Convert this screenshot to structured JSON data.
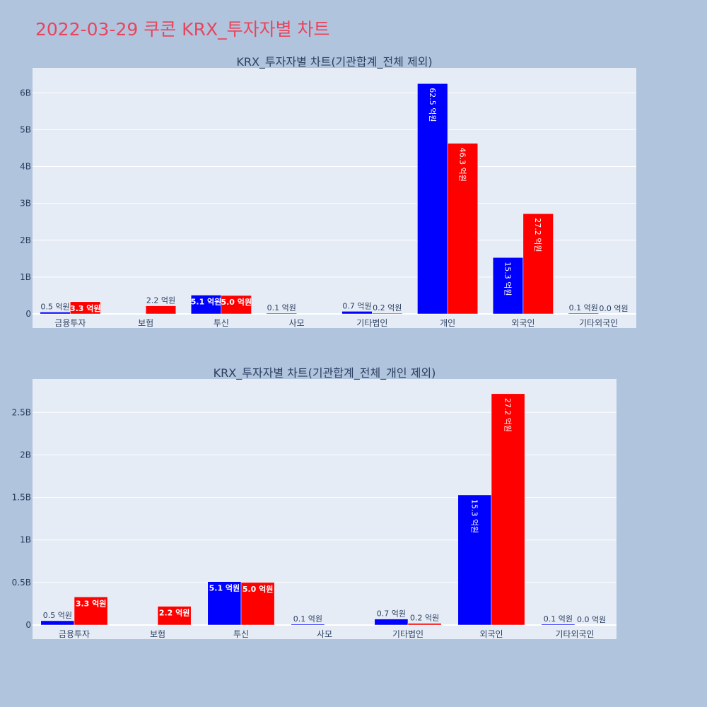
{
  "title": "2022-03-29 쿠콘 KRX_투자자별 차트",
  "colors": {
    "background": "#b0c4de",
    "plot_bg": "#e5ecf6",
    "title": "#e8455d",
    "series_buy": "#0000ff",
    "series_sell": "#ff0000",
    "text": "#2a3f5f"
  },
  "chart_data": [
    {
      "type": "bar",
      "title": "KRX_투자자별 차트(기관합계_전체 제외)",
      "categories": [
        "금융투자",
        "보험",
        "투신",
        "사모",
        "기타법인",
        "개인",
        "외국인",
        "기타외국인"
      ],
      "series": [
        {
          "color": "#0000ff",
          "values": [
            0.05,
            0,
            0.51,
            0.01,
            0.07,
            6.25,
            1.53,
            0.01
          ],
          "labels": [
            "0.5 억원",
            "",
            "5.1 억원",
            "0.1 억원",
            "0.7 억원",
            "62.5 억원",
            "15.3 억원",
            "0.1 억원"
          ]
        },
        {
          "color": "#ff0000",
          "values": [
            0.33,
            0.22,
            0.5,
            0,
            0.02,
            4.63,
            2.72,
            0.0
          ],
          "labels": [
            "3.3 억원",
            "2.2 억원",
            "5.0 억원",
            "",
            "0.2 억원",
            "46.3 억원",
            "27.2 억원",
            "0.0 억원"
          ]
        }
      ],
      "ylim": [
        0,
        6.6
      ],
      "yticks": [
        0,
        1,
        2,
        3,
        4,
        5,
        6
      ],
      "ytick_labels": [
        "0",
        "1B",
        "2B",
        "3B",
        "4B",
        "5B",
        "6B"
      ],
      "grid": true
    },
    {
      "type": "bar",
      "title": "KRX_투자자별 차트(기관합계_전체_개인 제외)",
      "categories": [
        "금융투자",
        "보험",
        "투신",
        "사모",
        "기타법인",
        "외국인",
        "기타외국인"
      ],
      "series": [
        {
          "color": "#0000ff",
          "values": [
            0.05,
            0,
            0.51,
            0.01,
            0.07,
            1.53,
            0.01
          ],
          "labels": [
            "0.5 억원",
            "",
            "5.1 억원",
            "0.1 억원",
            "0.7 억원",
            "15.3 억원",
            "0.1 억원"
          ]
        },
        {
          "color": "#ff0000",
          "values": [
            0.33,
            0.22,
            0.5,
            0,
            0.02,
            2.72,
            0.0
          ],
          "labels": [
            "3.3 억원",
            "2.2 억원",
            "5.0 억원",
            "",
            "0.2 억원",
            "27.2 억원",
            "0.0 억원"
          ]
        }
      ],
      "ylim": [
        0,
        2.86
      ],
      "yticks": [
        0,
        0.5,
        1,
        1.5,
        2,
        2.5
      ],
      "ytick_labels": [
        "0",
        "0.5B",
        "1B",
        "1.5B",
        "2B",
        "2.5B"
      ],
      "grid": true
    }
  ]
}
